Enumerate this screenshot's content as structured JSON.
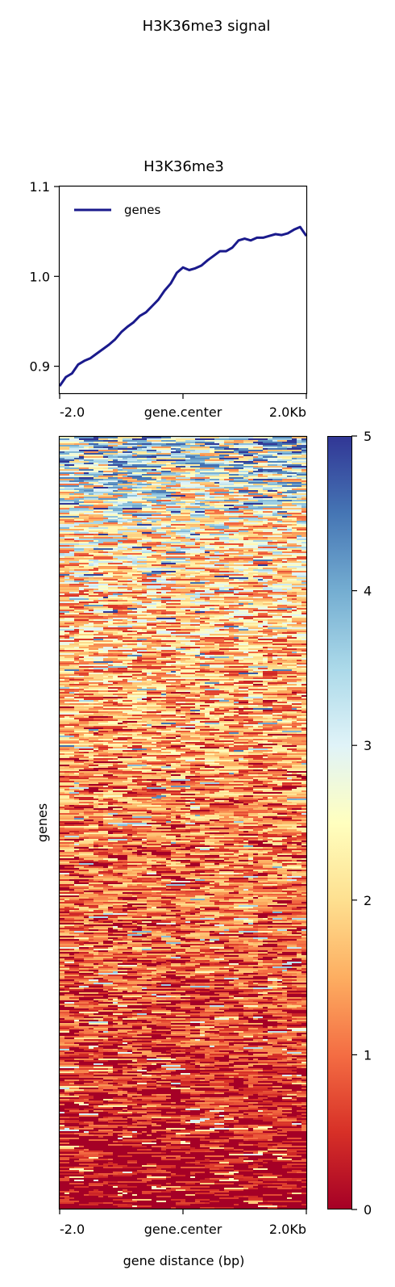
{
  "figure": {
    "suptitle": "H3K36me3 signal"
  },
  "chart_data": [
    {
      "type": "line",
      "title": "H3K36me3",
      "x_tick_labels": [
        "-2.0",
        "gene.center",
        "2.0Kb"
      ],
      "x_range": [
        -2000,
        2000
      ],
      "ylim": [
        0.87,
        1.1
      ],
      "y_ticks": [
        0.9,
        1.0,
        1.1
      ],
      "y_tick_labels": [
        "0.9",
        "1.0",
        "1.1"
      ],
      "legend": {
        "position": "top-left",
        "entries": [
          "genes"
        ]
      },
      "series": [
        {
          "name": "genes",
          "color": "#1a1a8c",
          "x": [
            -2000,
            -1900,
            -1800,
            -1700,
            -1600,
            -1500,
            -1400,
            -1300,
            -1200,
            -1100,
            -1000,
            -900,
            -800,
            -700,
            -600,
            -500,
            -400,
            -300,
            -200,
            -100,
            0,
            100,
            200,
            300,
            400,
            500,
            600,
            700,
            800,
            900,
            1000,
            1100,
            1200,
            1300,
            1400,
            1500,
            1600,
            1700,
            1800,
            1900,
            2000
          ],
          "y": [
            0.878,
            0.888,
            0.892,
            0.902,
            0.906,
            0.909,
            0.914,
            0.919,
            0.924,
            0.93,
            0.938,
            0.944,
            0.949,
            0.956,
            0.96,
            0.967,
            0.974,
            0.984,
            0.992,
            1.004,
            1.01,
            1.007,
            1.009,
            1.012,
            1.018,
            1.023,
            1.028,
            1.028,
            1.032,
            1.04,
            1.042,
            1.04,
            1.043,
            1.043,
            1.045,
            1.047,
            1.046,
            1.048,
            1.052,
            1.055,
            1.045
          ]
        }
      ]
    },
    {
      "type": "heatmap",
      "x_tick_labels": [
        "-2.0",
        "gene.center",
        "2.0Kb"
      ],
      "x_range": [
        -2000,
        2000
      ],
      "xlabel": "gene distance (bp)",
      "ylabel": "genes",
      "colormap": "RdYlBu",
      "colormap_stops": [
        "#a50026",
        "#d73027",
        "#f46d43",
        "#fdae61",
        "#fee090",
        "#ffffbf",
        "#e0f3f8",
        "#abd9e9",
        "#74add1",
        "#4575b4",
        "#313695"
      ],
      "value_range": [
        0,
        5
      ],
      "colorbar": {
        "ticks": [
          0,
          1,
          2,
          3,
          4,
          5
        ],
        "tick_labels": [
          "0",
          "1",
          "2",
          "3",
          "4",
          "5"
        ]
      },
      "rows_sorted": "descending mean signal",
      "row_mean_profile": {
        "rank_fraction": [
          0.0,
          0.1,
          0.2,
          0.3,
          0.5,
          0.7,
          0.9,
          1.0
        ],
        "mean": [
          3.4,
          2.4,
          1.9,
          1.6,
          1.2,
          0.85,
          0.45,
          0.1
        ]
      }
    }
  ]
}
